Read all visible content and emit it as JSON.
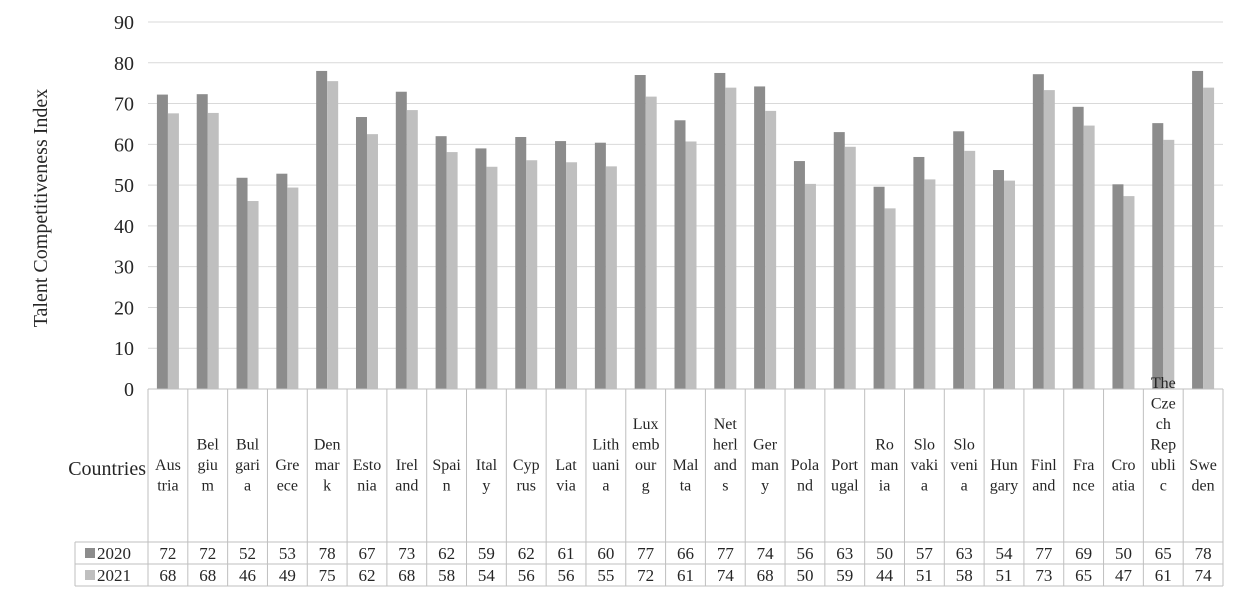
{
  "chart_data": {
    "type": "bar",
    "title": "",
    "ylabel": "Talent Competitiveness Index",
    "xlabel": "Countries",
    "ylim": [
      0,
      90
    ],
    "yticks": [
      0,
      10,
      20,
      30,
      40,
      50,
      60,
      70,
      80,
      90
    ],
    "grid": true,
    "legend": "data-table-rows",
    "categories": [
      "Austria",
      "Belgium",
      "Bulgaria",
      "Greece",
      "Denmark",
      "Estonia",
      "Ireland",
      "Spain",
      "Italy",
      "Cyprus",
      "Latvia",
      "Lithuania",
      "Luxembourg",
      "Malta",
      "Netherlands",
      "Germany",
      "Poland",
      "Portugal",
      "Romania",
      "Slovakia",
      "Slovenia",
      "Hungary",
      "Finland",
      "France",
      "Croatia",
      "The Czech Republic",
      "Sweden"
    ],
    "category_lines": [
      [
        "Aus",
        "tria"
      ],
      [
        "Bel",
        "giu",
        "m"
      ],
      [
        "Bul",
        "gari",
        "a"
      ],
      [
        "Gre",
        "ece"
      ],
      [
        "Den",
        "mar",
        "k"
      ],
      [
        "Esto",
        "nia"
      ],
      [
        "Irel",
        "and"
      ],
      [
        "Spai",
        "n"
      ],
      [
        "Ital",
        "y"
      ],
      [
        "Cyp",
        "rus"
      ],
      [
        "Lat",
        "via"
      ],
      [
        "Lith",
        "uani",
        "a"
      ],
      [
        "Lux",
        "emb",
        "our",
        "g"
      ],
      [
        "Mal",
        "ta"
      ],
      [
        "Net",
        "herl",
        "and",
        "s"
      ],
      [
        "Ger",
        "man",
        "y"
      ],
      [
        "Pola",
        "nd"
      ],
      [
        "Port",
        "ugal"
      ],
      [
        "Ro",
        "man",
        "ia"
      ],
      [
        "Slo",
        "vaki",
        "a"
      ],
      [
        "Slo",
        "veni",
        "a"
      ],
      [
        "Hun",
        "gary"
      ],
      [
        "Finl",
        "and"
      ],
      [
        "Fra",
        "nce"
      ],
      [
        "Cro",
        "atia"
      ],
      [
        "The",
        "Cze",
        "ch",
        "Rep",
        "ubli",
        "c"
      ],
      [
        "Swe",
        "den"
      ]
    ],
    "series": [
      {
        "name": "2020",
        "color": "#8c8c8c",
        "values": [
          72.2,
          72.3,
          51.8,
          52.8,
          78.0,
          66.7,
          72.9,
          62.0,
          59.0,
          61.8,
          60.8,
          60.4,
          77.0,
          65.9,
          77.5,
          74.2,
          55.9,
          63.0,
          49.6,
          56.9,
          63.2,
          53.7,
          77.2,
          69.2,
          50.2,
          65.2,
          78.0
        ],
        "labels": [
          "72",
          "72",
          "52",
          "53",
          "78",
          "67",
          "73",
          "62",
          "59",
          "62",
          "61",
          "60",
          "77",
          "66",
          "77",
          "74",
          "56",
          "63",
          "50",
          "57",
          "63",
          "54",
          "77",
          "69",
          "50",
          "65",
          "78"
        ]
      },
      {
        "name": "2021",
        "color": "#bfbfbf",
        "values": [
          67.6,
          67.7,
          46.1,
          49.4,
          75.5,
          62.5,
          68.4,
          58.1,
          54.5,
          56.1,
          55.6,
          54.6,
          71.7,
          60.7,
          73.9,
          68.2,
          50.3,
          59.4,
          44.3,
          51.4,
          58.4,
          51.1,
          73.3,
          64.6,
          47.3,
          61.1,
          73.9
        ],
        "labels": [
          "68",
          "68",
          "46",
          "49",
          "75",
          "62",
          "68",
          "58",
          "54",
          "56",
          "56",
          "55",
          "72",
          "61",
          "74",
          "68",
          "50",
          "59",
          "44",
          "51",
          "58",
          "51",
          "73",
          "65",
          "47",
          "61",
          "74"
        ]
      }
    ]
  }
}
